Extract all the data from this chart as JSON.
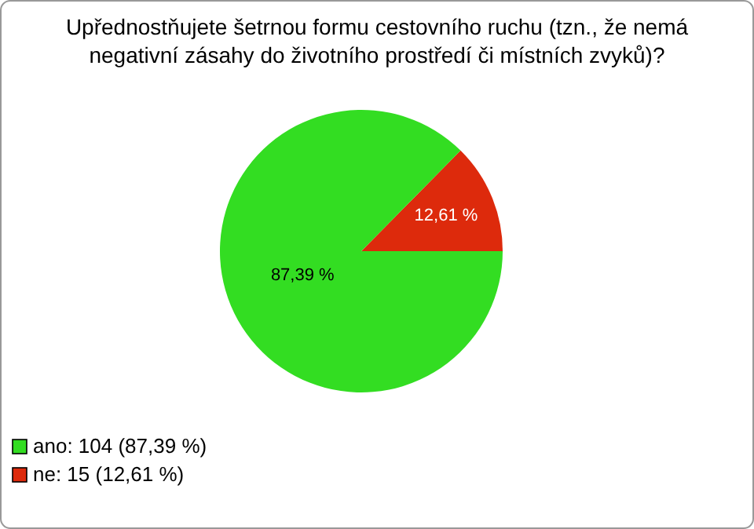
{
  "chart_data": {
    "type": "pie",
    "title": "Upřednostňujete šetrnou formu cestovního ruchu (tzn., že nemá negativní zásahy do životního prostředí či místních zvyků)?",
    "categories": [
      "ano: 104 (87,39 %)",
      "ne: 15 (12,61 %)"
    ],
    "values": [
      87.39,
      12.61
    ],
    "colors": [
      "#33dd22",
      "#dd2a0c"
    ],
    "value_labels": [
      "87,39 %",
      "12,61 %"
    ],
    "legend": "bottom left"
  }
}
